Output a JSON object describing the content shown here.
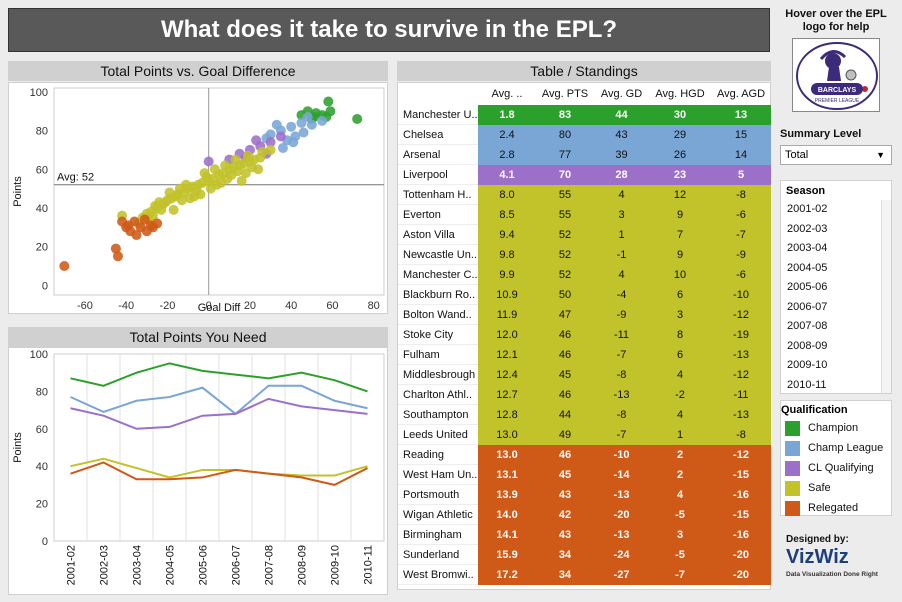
{
  "title": "What does it take to survive in the EPL?",
  "scatter": {
    "header": "Total Points vs. Goal Difference",
    "xlabel": "Goal Diff",
    "ylabel": "Points",
    "avg_label": "Avg: 52"
  },
  "lines": {
    "header": "Total Points You Need",
    "ylabel": "Points"
  },
  "table": {
    "header": "Table / Standings",
    "col_pos": "Avg. ..",
    "col_pts": "Avg. PTS",
    "col_gd": "Avg. GD",
    "col_hgd": "Avg. HGD",
    "col_agd": "Avg. AGD",
    "rows": [
      {
        "team": "Manchester U..",
        "pos": "1.8",
        "pts": "83",
        "gd": "44",
        "hgd": "30",
        "agd": "13",
        "q": "champion"
      },
      {
        "team": "Chelsea",
        "pos": "2.4",
        "pts": "80",
        "gd": "43",
        "hgd": "29",
        "agd": "15",
        "q": "cl"
      },
      {
        "team": "Arsenal",
        "pos": "2.8",
        "pts": "77",
        "gd": "39",
        "hgd": "26",
        "agd": "14",
        "q": "cl"
      },
      {
        "team": "Liverpool",
        "pos": "4.1",
        "pts": "70",
        "gd": "28",
        "hgd": "23",
        "agd": "5",
        "q": "clq"
      },
      {
        "team": "Tottenham H..",
        "pos": "8.0",
        "pts": "55",
        "gd": "4",
        "hgd": "12",
        "agd": "-8",
        "q": "safe"
      },
      {
        "team": "Everton",
        "pos": "8.5",
        "pts": "55",
        "gd": "3",
        "hgd": "9",
        "agd": "-6",
        "q": "safe"
      },
      {
        "team": "Aston Villa",
        "pos": "9.4",
        "pts": "52",
        "gd": "1",
        "hgd": "7",
        "agd": "-7",
        "q": "safe"
      },
      {
        "team": "Newcastle Un..",
        "pos": "9.8",
        "pts": "52",
        "gd": "-1",
        "hgd": "9",
        "agd": "-9",
        "q": "safe"
      },
      {
        "team": "Manchester C..",
        "pos": "9.9",
        "pts": "52",
        "gd": "4",
        "hgd": "10",
        "agd": "-6",
        "q": "safe"
      },
      {
        "team": "Blackburn Ro..",
        "pos": "10.9",
        "pts": "50",
        "gd": "-4",
        "hgd": "6",
        "agd": "-10",
        "q": "safe"
      },
      {
        "team": "Bolton Wand..",
        "pos": "11.9",
        "pts": "47",
        "gd": "-9",
        "hgd": "3",
        "agd": "-12",
        "q": "safe"
      },
      {
        "team": "Stoke City",
        "pos": "12.0",
        "pts": "46",
        "gd": "-11",
        "hgd": "8",
        "agd": "-19",
        "q": "safe"
      },
      {
        "team": "Fulham",
        "pos": "12.1",
        "pts": "46",
        "gd": "-7",
        "hgd": "6",
        "agd": "-13",
        "q": "safe"
      },
      {
        "team": "Middlesbrough",
        "pos": "12.4",
        "pts": "45",
        "gd": "-8",
        "hgd": "4",
        "agd": "-12",
        "q": "safe"
      },
      {
        "team": "Charlton Athl..",
        "pos": "12.7",
        "pts": "46",
        "gd": "-13",
        "hgd": "-2",
        "agd": "-11",
        "q": "safe"
      },
      {
        "team": "Southampton",
        "pos": "12.8",
        "pts": "44",
        "gd": "-8",
        "hgd": "4",
        "agd": "-13",
        "q": "safe"
      },
      {
        "team": "Leeds United",
        "pos": "13.0",
        "pts": "49",
        "gd": "-7",
        "hgd": "1",
        "agd": "-8",
        "q": "safe"
      },
      {
        "team": "Reading",
        "pos": "13.0",
        "pts": "46",
        "gd": "-10",
        "hgd": "2",
        "agd": "-12",
        "q": "rel"
      },
      {
        "team": "West Ham Un..",
        "pos": "13.1",
        "pts": "45",
        "gd": "-14",
        "hgd": "2",
        "agd": "-15",
        "q": "rel"
      },
      {
        "team": "Portsmouth",
        "pos": "13.9",
        "pts": "43",
        "gd": "-13",
        "hgd": "4",
        "agd": "-16",
        "q": "rel"
      },
      {
        "team": "Wigan Athletic",
        "pos": "14.0",
        "pts": "42",
        "gd": "-20",
        "hgd": "-5",
        "agd": "-15",
        "q": "rel"
      },
      {
        "team": "Birmingham",
        "pos": "14.1",
        "pts": "43",
        "gd": "-13",
        "hgd": "3",
        "agd": "-16",
        "q": "rel"
      },
      {
        "team": "Sunderland",
        "pos": "15.9",
        "pts": "34",
        "gd": "-24",
        "hgd": "-5",
        "agd": "-20",
        "q": "rel"
      },
      {
        "team": "West Bromwi..",
        "pos": "17.2",
        "pts": "34",
        "gd": "-27",
        "hgd": "-7",
        "agd": "-20",
        "q": "rel"
      }
    ]
  },
  "colors": {
    "champion": "#2ca02c",
    "cl": "#7aa6d6",
    "clq": "#9c6fc9",
    "safe": "#c2c22a",
    "rel": "#cf5a17"
  },
  "help": {
    "line1": "Hover over the EPL",
    "line2": "logo for help"
  },
  "logo": {
    "text": "BARCLAYS",
    "subtext": "PREMIER LEAGUE"
  },
  "summary": {
    "label": "Summary Level",
    "value": "Total"
  },
  "season": {
    "label": "Season",
    "items": [
      "2001-02",
      "2002-03",
      "2003-04",
      "2004-05",
      "2005-06",
      "2006-07",
      "2007-08",
      "2008-09",
      "2009-10",
      "2010-11"
    ]
  },
  "qualification": {
    "label": "Qualification",
    "items": [
      {
        "label": "Champion",
        "key": "champion"
      },
      {
        "label": "Champ League",
        "key": "cl"
      },
      {
        "label": "CL Qualifying",
        "key": "clq"
      },
      {
        "label": "Safe",
        "key": "safe"
      },
      {
        "label": "Relegated",
        "key": "rel"
      }
    ]
  },
  "designer": {
    "label": "Designed by:",
    "brand": "VizWiz",
    "tagline": "Data Visualization Done Right"
  },
  "chart_data": [
    {
      "type": "scatter",
      "title": "Total Points vs. Goal Difference",
      "xlabel": "Goal Diff",
      "ylabel": "Points",
      "xlim": [
        -75,
        85
      ],
      "ylim": [
        -5,
        102
      ],
      "xticks": [
        -60,
        -40,
        -20,
        0,
        20,
        40,
        60,
        80
      ],
      "yticks": [
        0,
        20,
        40,
        60,
        80,
        100
      ],
      "reference_line": {
        "y": 52,
        "label": "Avg: 52"
      },
      "series": [
        {
          "key": "champion",
          "points": [
            [
              58,
              95
            ],
            [
              59,
              90
            ],
            [
              52,
              89
            ],
            [
              51,
              87
            ],
            [
              48,
              90
            ],
            [
              45,
              88
            ],
            [
              72,
              86
            ],
            [
              55,
              88
            ],
            [
              57,
              87
            ],
            [
              50,
              86
            ]
          ]
        },
        {
          "key": "cl",
          "points": [
            [
              30,
              78
            ],
            [
              35,
              80
            ],
            [
              40,
              82
            ],
            [
              42,
              77
            ],
            [
              45,
              84
            ],
            [
              38,
              75
            ],
            [
              50,
              83
            ],
            [
              33,
              83
            ],
            [
              28,
              76
            ],
            [
              46,
              79
            ],
            [
              55,
              85
            ],
            [
              36,
              71
            ],
            [
              41,
              74
            ],
            [
              48,
              87
            ]
          ]
        },
        {
          "key": "clq",
          "points": [
            [
              0,
              64
            ],
            [
              15,
              68
            ],
            [
              20,
              70
            ],
            [
              25,
              72
            ],
            [
              30,
              74
            ],
            [
              35,
              77
            ],
            [
              10,
              65
            ],
            [
              18,
              66
            ],
            [
              23,
              75
            ],
            [
              28,
              68
            ]
          ]
        },
        {
          "key": "safe",
          "points": [
            [
              -20,
              44
            ],
            [
              -15,
              47
            ],
            [
              -10,
              50
            ],
            [
              -5,
              52
            ],
            [
              0,
              54
            ],
            [
              5,
              57
            ],
            [
              10,
              60
            ],
            [
              15,
              62
            ],
            [
              20,
              64
            ],
            [
              25,
              66
            ],
            [
              -18,
              45
            ],
            [
              -12,
              48
            ],
            [
              -8,
              51
            ],
            [
              -3,
              53
            ],
            [
              2,
              55
            ],
            [
              7,
              58
            ],
            [
              12,
              61
            ],
            [
              17,
              63
            ],
            [
              22,
              65
            ],
            [
              -25,
              40
            ],
            [
              -22,
              42
            ],
            [
              -16,
              46
            ],
            [
              -6,
              49
            ],
            [
              -1,
              56
            ],
            [
              4,
              52
            ],
            [
              9,
              55
            ],
            [
              14,
              59
            ],
            [
              19,
              67
            ],
            [
              24,
              60
            ],
            [
              30,
              70
            ],
            [
              -28,
              38
            ],
            [
              -30,
              37
            ],
            [
              -24,
              43
            ],
            [
              -14,
              50
            ],
            [
              -9,
              45
            ],
            [
              -4,
              47
            ],
            [
              1,
              50
            ],
            [
              6,
              53
            ],
            [
              11,
              57
            ],
            [
              16,
              54
            ],
            [
              21,
              61
            ],
            [
              -19,
              48
            ],
            [
              -11,
              52
            ],
            [
              -2,
              58
            ],
            [
              3,
              60
            ],
            [
              8,
              62
            ],
            [
              13,
              65
            ],
            [
              18,
              58
            ],
            [
              26,
              69
            ],
            [
              -26,
              41
            ],
            [
              -17,
              39
            ],
            [
              -13,
              44
            ],
            [
              -7,
              46
            ],
            [
              -27,
              36
            ],
            [
              -21,
              43
            ],
            [
              -23,
              39
            ],
            [
              -29,
              34
            ],
            [
              -34,
              32
            ],
            [
              -32,
              35
            ],
            [
              -42,
              36
            ]
          ]
        },
        {
          "key": "rel",
          "points": [
            [
              -70,
              10
            ],
            [
              -45,
              19
            ],
            [
              -44,
              15
            ],
            [
              -40,
              30
            ],
            [
              -38,
              28
            ],
            [
              -35,
              26
            ],
            [
              -33,
              30
            ],
            [
              -30,
              28
            ],
            [
              -28,
              31
            ],
            [
              -36,
              33
            ],
            [
              -42,
              33
            ],
            [
              -25,
              32
            ],
            [
              -31,
              34
            ],
            [
              -39,
              31
            ],
            [
              -27,
              30
            ]
          ]
        }
      ]
    },
    {
      "type": "line",
      "title": "Total Points You Need",
      "ylabel": "Points",
      "ylim": [
        0,
        100
      ],
      "yticks": [
        0,
        20,
        40,
        60,
        80,
        100
      ],
      "categories": [
        "2001-02",
        "2002-03",
        "2003-04",
        "2004-05",
        "2005-06",
        "2006-07",
        "2007-08",
        "2008-09",
        "2009-10",
        "2010-11"
      ],
      "series": [
        {
          "key": "champion",
          "values": [
            87,
            83,
            90,
            95,
            91,
            89,
            87,
            90,
            86,
            80
          ]
        },
        {
          "key": "cl",
          "values": [
            77,
            69,
            75,
            77,
            82,
            68,
            83,
            83,
            75,
            71
          ]
        },
        {
          "key": "clq",
          "values": [
            71,
            67,
            60,
            61,
            67,
            68,
            76,
            72,
            70,
            68
          ]
        },
        {
          "key": "safe",
          "values": [
            40,
            44,
            39,
            34,
            38,
            38,
            36,
            35,
            35,
            40
          ]
        },
        {
          "key": "rel",
          "values": [
            36,
            42,
            33,
            33,
            34,
            38,
            36,
            34,
            30,
            39
          ]
        }
      ]
    }
  ]
}
